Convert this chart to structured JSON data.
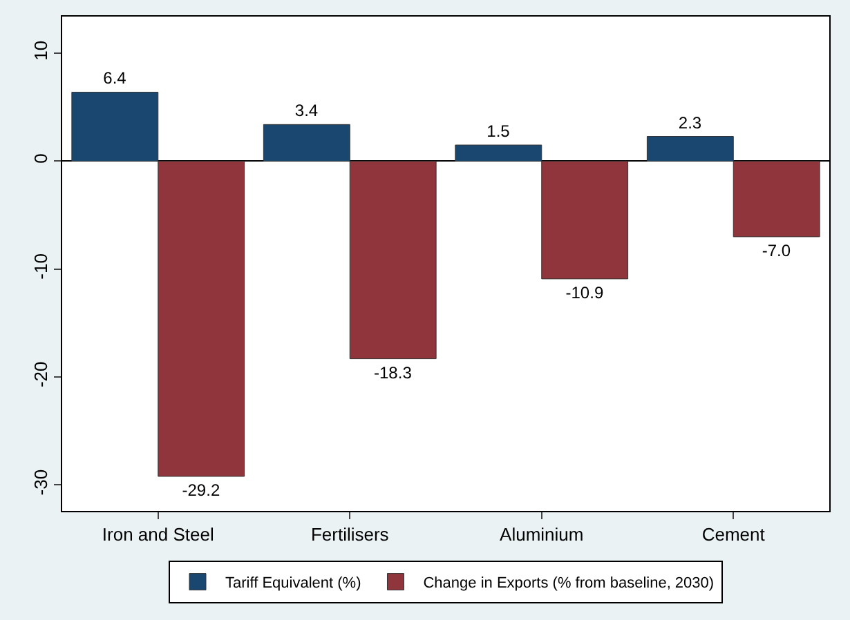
{
  "chart_data": {
    "type": "bar",
    "categories": [
      "Iron and Steel",
      "Fertilisers",
      "Aluminium",
      "Cement"
    ],
    "series": [
      {
        "name": "Tariff Equivalent (%)",
        "color": "#1a476f",
        "values": [
          6.4,
          3.4,
          1.5,
          2.3
        ],
        "value_labels": [
          "6.4",
          "3.4",
          "1.5",
          "2.3"
        ]
      },
      {
        "name": "Change in Exports (% from baseline, 2030)",
        "color": "#90353b",
        "values": [
          -29.2,
          -18.3,
          -10.9,
          -7.0
        ],
        "value_labels": [
          "-29.2",
          "-18.3",
          "-10.9",
          "-7.0"
        ]
      }
    ],
    "ylim": [
      -32.4,
      13.4
    ],
    "yticks": [
      -30,
      -20,
      -10,
      0,
      10
    ],
    "legend": "bottom"
  }
}
